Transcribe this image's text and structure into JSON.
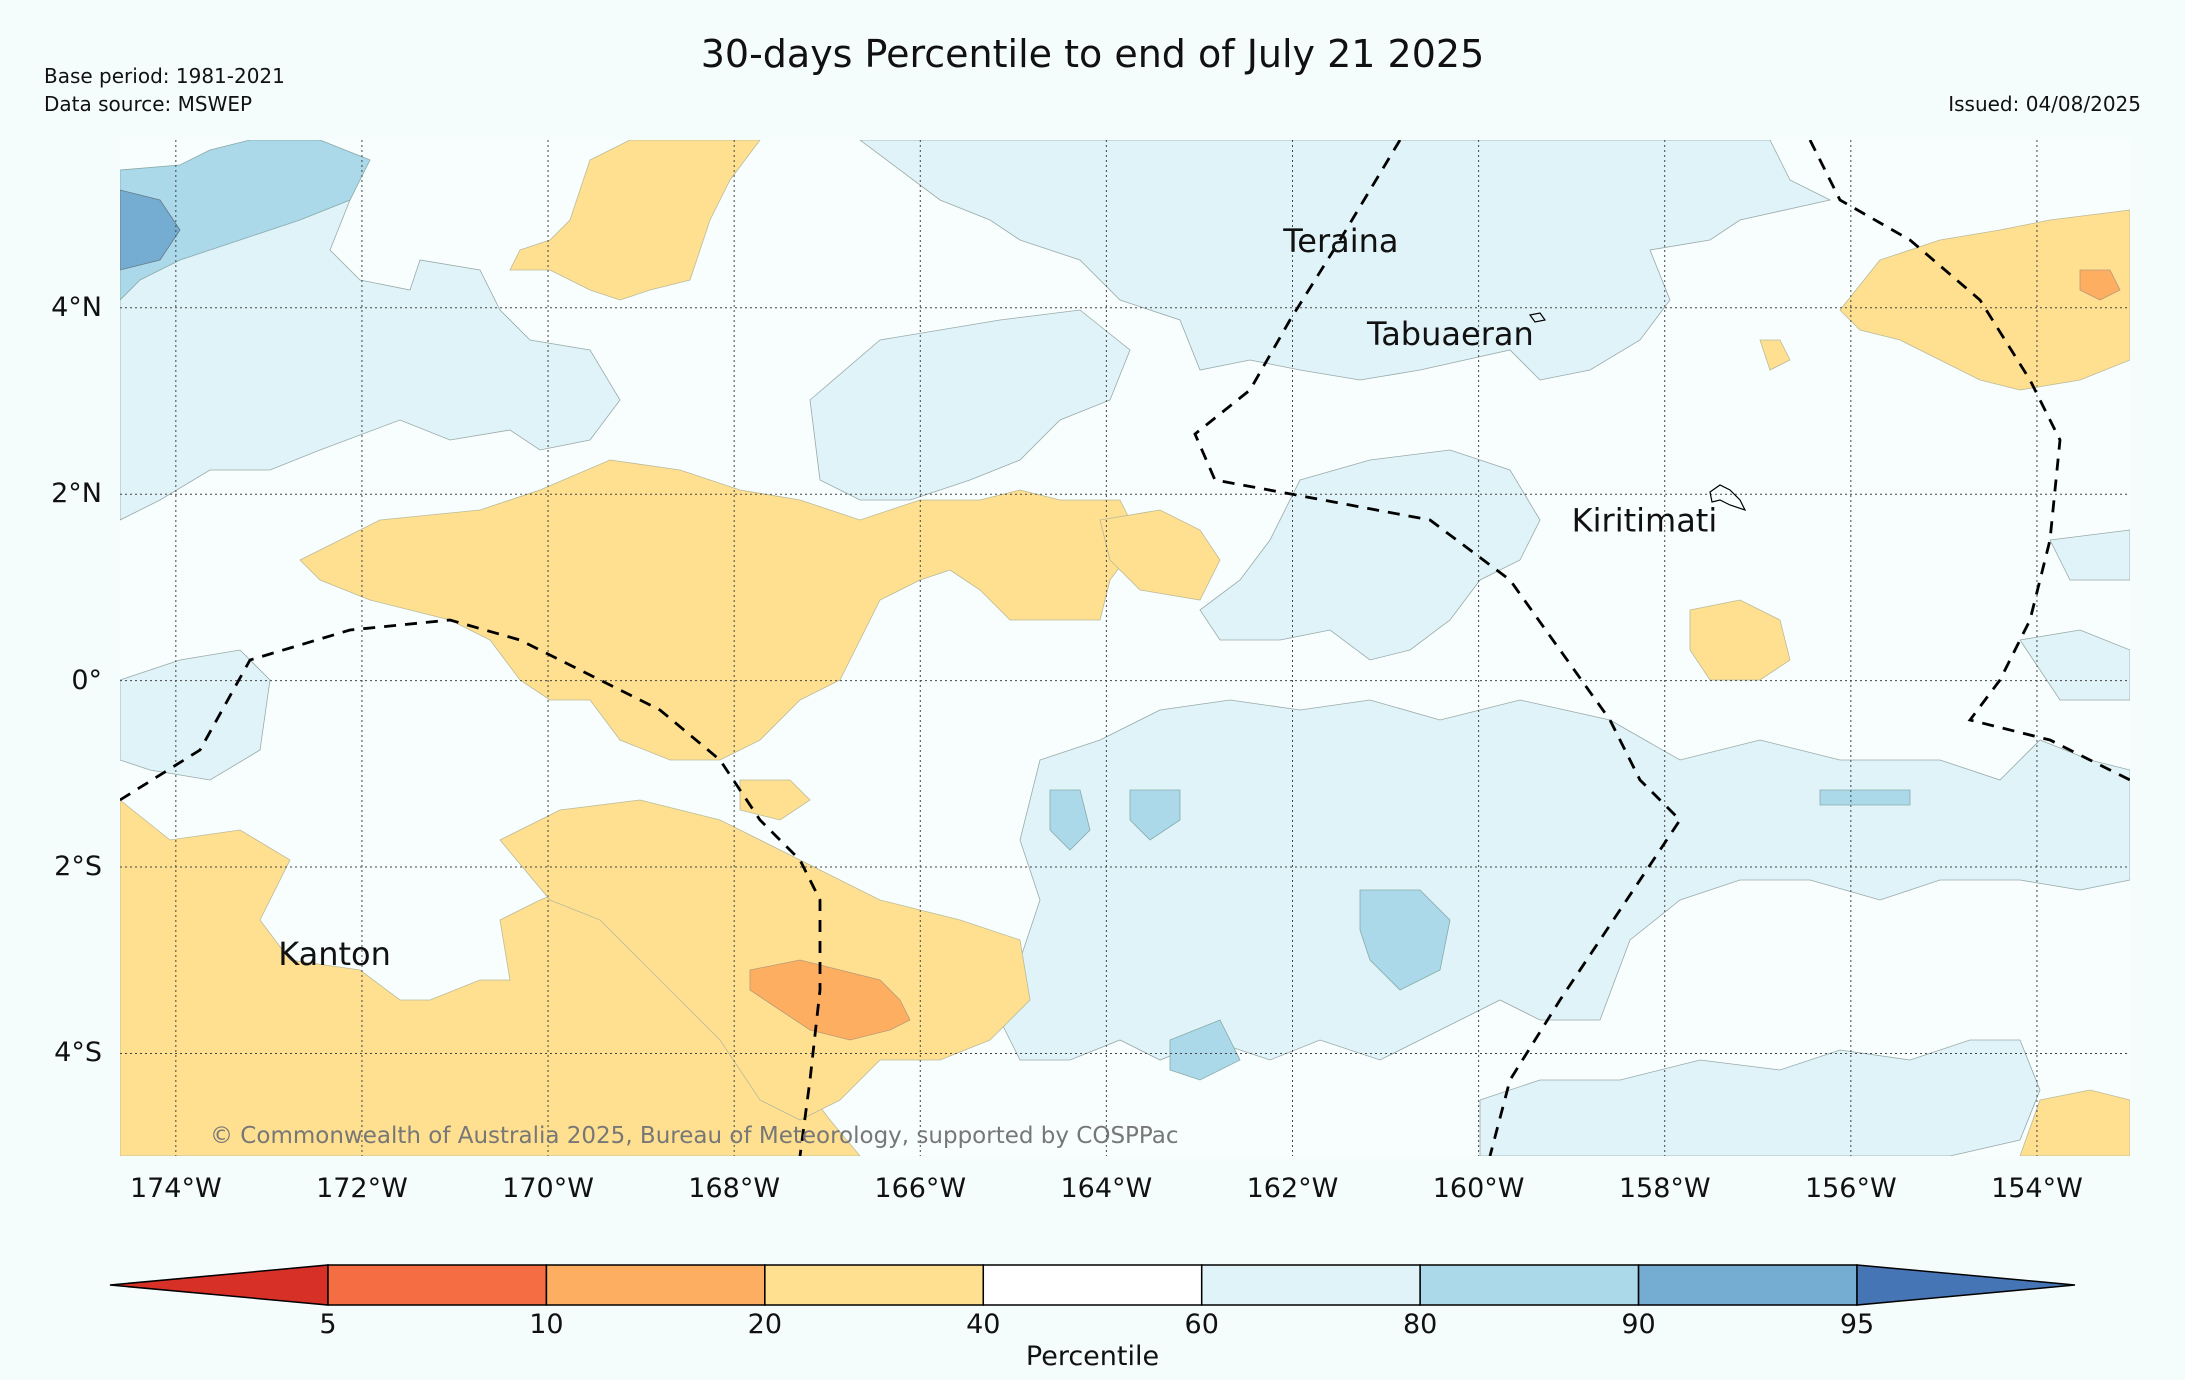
{
  "header": {
    "title": "30-days Percentile to end of July 21 2025",
    "base_period": "Base period: 1981-2021",
    "data_source": "Data source: MSWEP",
    "issued": "Issued: 04/08/2025"
  },
  "map": {
    "lon_range": [
      -174.6,
      -153.0
    ],
    "lat_range": [
      -5.1,
      5.8
    ],
    "lat_ticks": [
      {
        "value": 4,
        "label": "4°N"
      },
      {
        "value": 2,
        "label": "2°N"
      },
      {
        "value": 0,
        "label": "0°"
      },
      {
        "value": -2,
        "label": "2°S"
      },
      {
        "value": -4,
        "label": "4°S"
      }
    ],
    "lon_ticks": [
      {
        "value": -174,
        "label": "174°W"
      },
      {
        "value": -172,
        "label": "172°W"
      },
      {
        "value": -170,
        "label": "170°W"
      },
      {
        "value": -168,
        "label": "168°W"
      },
      {
        "value": -166,
        "label": "166°W"
      },
      {
        "value": -164,
        "label": "164°W"
      },
      {
        "value": -162,
        "label": "162°W"
      },
      {
        "value": -160,
        "label": "160°W"
      },
      {
        "value": -158,
        "label": "158°W"
      },
      {
        "value": -156,
        "label": "156°W"
      },
      {
        "value": -154,
        "label": "154°W"
      }
    ],
    "places": [
      {
        "name": "Teraina",
        "lon": -162.1,
        "lat": 4.6
      },
      {
        "name": "Tabuaeran",
        "lon": -161.2,
        "lat": 3.6
      },
      {
        "name": "Kiritimati",
        "lon": -159.0,
        "lat": 1.6
      },
      {
        "name": "Kanton",
        "lon": -172.9,
        "lat": -3.05
      }
    ],
    "copyright": "© Commonwealth of Australia 2025, Bureau of Meteorology, supported by COSPPac",
    "colors": {
      "below_5": "#d73027",
      "p5_10": "#f46d43",
      "p10_20": "#fdae61",
      "p20_40": "#fee090",
      "p40_60": "#f8fdfd",
      "p60_80": "#e0f3f8",
      "p80_90": "#abd9e9",
      "p90_95": "#74add1",
      "above_95": "#4575b4"
    }
  },
  "colorbar": {
    "label": "Percentile",
    "ticks": [
      "5",
      "10",
      "20",
      "40",
      "60",
      "80",
      "90",
      "95"
    ],
    "colors": [
      "#d73027",
      "#f46d43",
      "#fdae61",
      "#fee090",
      "#ffffff",
      "#e0f3f8",
      "#abd9e9",
      "#74add1",
      "#4575b4"
    ]
  }
}
